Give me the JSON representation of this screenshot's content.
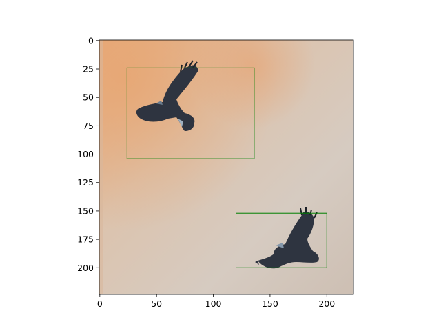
{
  "chart_data": {
    "type": "image",
    "title": "",
    "xlabel": "",
    "ylabel": "",
    "xlim": [
      -0.5,
      223.5
    ],
    "ylim": [
      223.5,
      -0.5
    ],
    "x_ticks": [
      0,
      50,
      100,
      150,
      200
    ],
    "y_ticks": [
      0,
      25,
      50,
      75,
      100,
      125,
      150,
      175,
      200
    ],
    "grid": false,
    "legend": "none",
    "bounding_boxes": [
      {
        "label": "",
        "x0": 24,
        "y0": 24,
        "x1": 136,
        "y1": 104,
        "color": "#008000"
      },
      {
        "label": "",
        "x0": 120,
        "y0": 152,
        "x1": 200,
        "y1": 200,
        "color": "#008000"
      }
    ],
    "image_content": {
      "subjects": [
        "bird-in-flight",
        "bird-in-flight"
      ],
      "background_colors": [
        "#e4a878",
        "#d8cbbd",
        "#cfc6bd"
      ],
      "bird_color": "#2e3440"
    }
  }
}
